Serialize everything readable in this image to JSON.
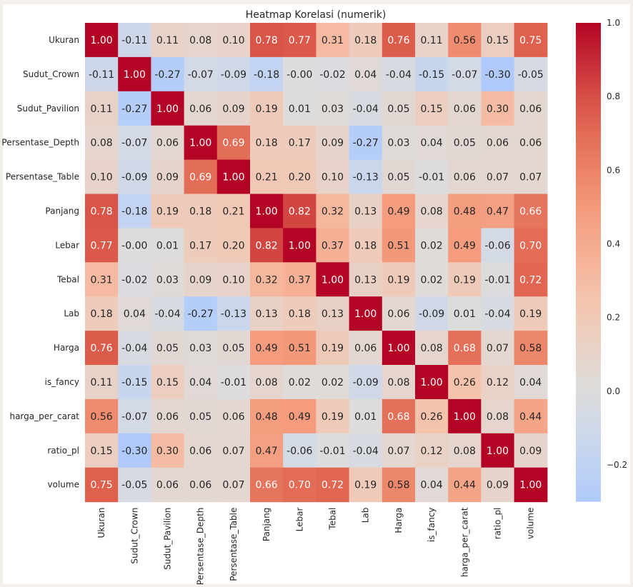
{
  "chart_data": {
    "type": "heatmap",
    "title": "Heatmap Korelasi (numerik)",
    "colormap": "coolwarm",
    "vmin": -0.3,
    "vmax": 1.0,
    "labels": [
      "Ukuran",
      "Sudut_Crown",
      "Sudut_Pavilion",
      "Persentase_Depth",
      "Persentase_Table",
      "Panjang",
      "Lebar",
      "Tebal",
      "Lab",
      "Harga",
      "is_fancy",
      "harga_per_carat",
      "ratio_pl",
      "volume"
    ],
    "values": [
      [
        1.0,
        -0.11,
        0.11,
        0.08,
        0.1,
        0.78,
        0.77,
        0.31,
        0.18,
        0.76,
        0.11,
        0.56,
        0.15,
        0.75
      ],
      [
        -0.11,
        1.0,
        -0.27,
        -0.07,
        -0.09,
        -0.18,
        -0.0,
        -0.02,
        0.04,
        -0.04,
        -0.15,
        -0.07,
        -0.3,
        -0.05
      ],
      [
        0.11,
        -0.27,
        1.0,
        0.06,
        0.09,
        0.19,
        0.01,
        0.03,
        -0.04,
        0.05,
        0.15,
        0.06,
        0.3,
        0.06
      ],
      [
        0.08,
        -0.07,
        0.06,
        1.0,
        0.69,
        0.18,
        0.17,
        0.09,
        -0.27,
        0.03,
        0.04,
        0.05,
        0.06,
        0.06
      ],
      [
        0.1,
        -0.09,
        0.09,
        0.69,
        1.0,
        0.21,
        0.2,
        0.1,
        -0.13,
        0.05,
        -0.01,
        0.06,
        0.07,
        0.07
      ],
      [
        0.78,
        -0.18,
        0.19,
        0.18,
        0.21,
        1.0,
        0.82,
        0.32,
        0.13,
        0.49,
        0.08,
        0.48,
        0.47,
        0.66
      ],
      [
        0.77,
        -0.0,
        0.01,
        0.17,
        0.2,
        0.82,
        1.0,
        0.37,
        0.18,
        0.51,
        0.02,
        0.49,
        -0.06,
        0.7
      ],
      [
        0.31,
        -0.02,
        0.03,
        0.09,
        0.1,
        0.32,
        0.37,
        1.0,
        0.13,
        0.19,
        0.02,
        0.19,
        -0.01,
        0.72
      ],
      [
        0.18,
        0.04,
        -0.04,
        -0.27,
        -0.13,
        0.13,
        0.18,
        0.13,
        1.0,
        0.06,
        -0.09,
        0.01,
        -0.04,
        0.19
      ],
      [
        0.76,
        -0.04,
        0.05,
        0.03,
        0.05,
        0.49,
        0.51,
        0.19,
        0.06,
        1.0,
        0.08,
        0.68,
        0.07,
        0.58
      ],
      [
        0.11,
        -0.15,
        0.15,
        0.04,
        -0.01,
        0.08,
        0.02,
        0.02,
        -0.09,
        0.08,
        1.0,
        0.26,
        0.12,
        0.04
      ],
      [
        0.56,
        -0.07,
        0.06,
        0.05,
        0.06,
        0.48,
        0.49,
        0.19,
        0.01,
        0.68,
        0.26,
        1.0,
        0.08,
        0.44
      ],
      [
        0.15,
        -0.3,
        0.3,
        0.06,
        0.07,
        0.47,
        -0.06,
        -0.01,
        -0.04,
        0.07,
        0.12,
        0.08,
        1.0,
        0.09
      ],
      [
        0.75,
        -0.05,
        0.06,
        0.06,
        0.07,
        0.66,
        0.7,
        0.72,
        0.19,
        0.58,
        0.04,
        0.44,
        0.09,
        1.0
      ]
    ],
    "colorbar_ticks": [
      1.0,
      0.8,
      0.6,
      0.4,
      0.2,
      0.0,
      -0.2
    ],
    "colorbar_tick_labels": [
      "1.0",
      "0.8",
      "0.6",
      "0.4",
      "0.2",
      "0.0",
      "−0.2"
    ]
  }
}
